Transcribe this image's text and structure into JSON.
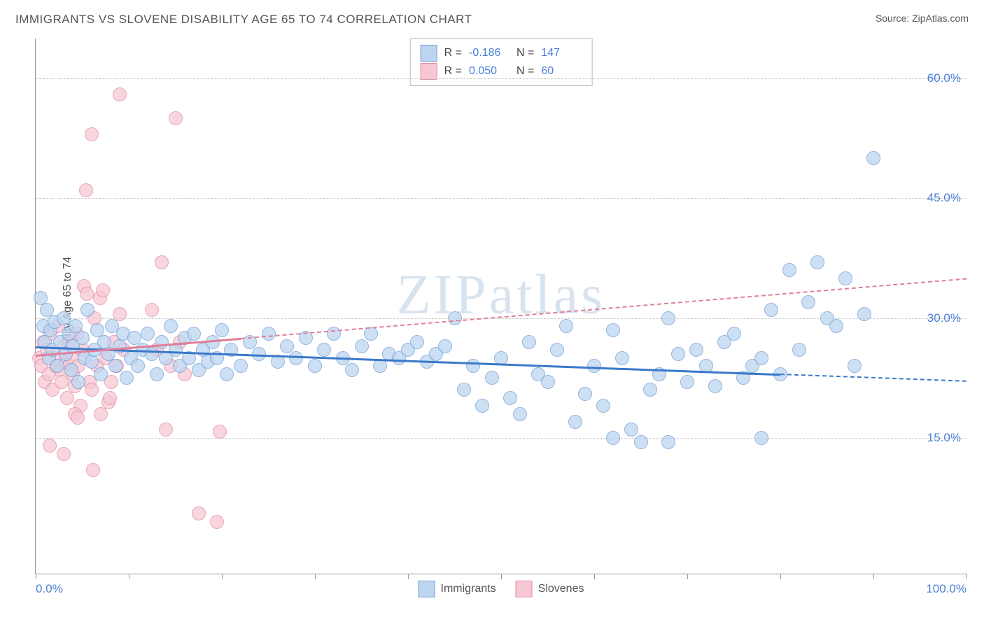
{
  "title": "IMMIGRANTS VS SLOVENE DISABILITY AGE 65 TO 74 CORRELATION CHART",
  "source_label": "Source: ",
  "source_name": "ZipAtlas.com",
  "ylabel": "Disability Age 65 to 74",
  "watermark": "ZIPatlas",
  "chart": {
    "type": "scatter",
    "xlim": [
      0,
      100
    ],
    "ylim": [
      -2,
      65
    ],
    "xticks": [
      0,
      10,
      20,
      30,
      40,
      50,
      60,
      70,
      80,
      90,
      100
    ],
    "xtick_labels": {
      "left": "0.0%",
      "right": "100.0%"
    },
    "yticks": [
      15,
      30,
      45,
      60
    ],
    "ytick_labels": [
      "15.0%",
      "30.0%",
      "45.0%",
      "60.0%"
    ],
    "grid_color": "#cccccc",
    "background_color": "#ffffff",
    "axis_color": "#999999",
    "marker_radius": 9,
    "marker_border_width": 1.5,
    "series": [
      {
        "name": "Immigrants",
        "legend_label": "Immigrants",
        "fill": "#bdd5f0",
        "stroke": "#6f9fd8",
        "R": "-0.186",
        "N": "147",
        "trend": {
          "x1": 0,
          "y1": 26.5,
          "x2": 100,
          "y2": 22.2,
          "solid_until_x": 80,
          "color": "#3a78c9"
        },
        "points": [
          [
            0.5,
            32.5
          ],
          [
            0.8,
            29
          ],
          [
            1,
            27
          ],
          [
            1.2,
            31
          ],
          [
            1.4,
            25
          ],
          [
            1.6,
            28.5
          ],
          [
            1.8,
            26
          ],
          [
            2,
            29.5
          ],
          [
            2.3,
            24
          ],
          [
            2.6,
            27
          ],
          [
            3,
            30
          ],
          [
            3.2,
            25.5
          ],
          [
            3.5,
            28
          ],
          [
            3.8,
            23.5
          ],
          [
            4,
            26.5
          ],
          [
            4.3,
            29
          ],
          [
            4.6,
            22
          ],
          [
            5,
            27.5
          ],
          [
            5.3,
            25
          ],
          [
            5.6,
            31
          ],
          [
            6,
            24.5
          ],
          [
            6.3,
            26
          ],
          [
            6.6,
            28.5
          ],
          [
            7,
            23
          ],
          [
            7.4,
            27
          ],
          [
            7.8,
            25.5
          ],
          [
            8.2,
            29
          ],
          [
            8.6,
            24
          ],
          [
            9,
            26.5
          ],
          [
            9.4,
            28
          ],
          [
            9.8,
            22.5
          ],
          [
            10.2,
            25
          ],
          [
            10.6,
            27.5
          ],
          [
            11,
            24
          ],
          [
            11.5,
            26
          ],
          [
            12,
            28
          ],
          [
            12.5,
            25.5
          ],
          [
            13,
            23
          ],
          [
            13.5,
            27
          ],
          [
            14,
            25
          ],
          [
            14.5,
            29
          ],
          [
            15,
            26
          ],
          [
            15.5,
            24
          ],
          [
            16,
            27.5
          ],
          [
            16.5,
            25
          ],
          [
            17,
            28
          ],
          [
            17.5,
            23.5
          ],
          [
            18,
            26
          ],
          [
            18.5,
            24.5
          ],
          [
            19,
            27
          ],
          [
            19.5,
            25
          ],
          [
            20,
            28.5
          ],
          [
            20.5,
            23
          ],
          [
            21,
            26
          ],
          [
            22,
            24
          ],
          [
            23,
            27
          ],
          [
            24,
            25.5
          ],
          [
            25,
            28
          ],
          [
            26,
            24.5
          ],
          [
            27,
            26.5
          ],
          [
            28,
            25
          ],
          [
            29,
            27.5
          ],
          [
            30,
            24
          ],
          [
            31,
            26
          ],
          [
            32,
            28
          ],
          [
            33,
            25
          ],
          [
            34,
            23.5
          ],
          [
            35,
            26.5
          ],
          [
            36,
            28
          ],
          [
            37,
            24
          ],
          [
            38,
            25.5
          ],
          [
            39,
            25
          ],
          [
            40,
            26
          ],
          [
            41,
            27
          ],
          [
            42,
            24.5
          ],
          [
            43,
            25.5
          ],
          [
            44,
            26.5
          ],
          [
            45,
            30
          ],
          [
            46,
            21
          ],
          [
            47,
            24
          ],
          [
            48,
            19
          ],
          [
            49,
            22.5
          ],
          [
            50,
            25
          ],
          [
            51,
            20
          ],
          [
            52,
            18
          ],
          [
            53,
            27
          ],
          [
            54,
            23
          ],
          [
            55,
            22
          ],
          [
            56,
            26
          ],
          [
            57,
            29
          ],
          [
            58,
            17
          ],
          [
            59,
            20.5
          ],
          [
            60,
            24
          ],
          [
            61,
            19
          ],
          [
            62,
            28.5
          ],
          [
            63,
            25
          ],
          [
            64,
            16
          ],
          [
            65,
            14.5
          ],
          [
            66,
            21
          ],
          [
            67,
            23
          ],
          [
            68,
            30
          ],
          [
            69,
            25.5
          ],
          [
            70,
            22
          ],
          [
            71,
            26
          ],
          [
            72,
            24
          ],
          [
            73,
            21.5
          ],
          [
            74,
            27
          ],
          [
            75,
            28
          ],
          [
            76,
            22.5
          ],
          [
            77,
            24
          ],
          [
            78,
            25
          ],
          [
            79,
            31
          ],
          [
            80,
            23
          ],
          [
            81,
            36
          ],
          [
            82,
            26
          ],
          [
            83,
            32
          ],
          [
            84,
            37
          ],
          [
            85,
            30
          ],
          [
            86,
            29
          ],
          [
            87,
            35
          ],
          [
            88,
            24
          ],
          [
            89,
            30.5
          ],
          [
            90,
            50
          ],
          [
            78,
            15
          ],
          [
            68,
            14.5
          ],
          [
            62,
            15
          ]
        ]
      },
      {
        "name": "Slovenes",
        "legend_label": "Slovenes",
        "fill": "#f7c8d3",
        "stroke": "#e18ba3",
        "R": "0.050",
        "N": "60",
        "trend": {
          "x1": 0,
          "y1": 25.4,
          "x2": 100,
          "y2": 35,
          "solid_until_x": 22,
          "color": "#e07f9a"
        },
        "points": [
          [
            0.4,
            25
          ],
          [
            0.6,
            24
          ],
          [
            0.8,
            27
          ],
          [
            1,
            22
          ],
          [
            1.2,
            26
          ],
          [
            1.4,
            23
          ],
          [
            1.6,
            28
          ],
          [
            1.8,
            21
          ],
          [
            2,
            25
          ],
          [
            2.2,
            24
          ],
          [
            2.4,
            29
          ],
          [
            2.6,
            23.5
          ],
          [
            2.8,
            22
          ],
          [
            3,
            26.5
          ],
          [
            3.2,
            24.5
          ],
          [
            3.4,
            20
          ],
          [
            3.6,
            27
          ],
          [
            3.8,
            25
          ],
          [
            4,
            23
          ],
          [
            4.2,
            21.5
          ],
          [
            4.4,
            28
          ],
          [
            4.6,
            24
          ],
          [
            4.8,
            19
          ],
          [
            5,
            26
          ],
          [
            5.2,
            34
          ],
          [
            5.5,
            33
          ],
          [
            5.8,
            22
          ],
          [
            6,
            21
          ],
          [
            6.3,
            30
          ],
          [
            6.6,
            24
          ],
          [
            6.9,
            32.5
          ],
          [
            7.2,
            33.5
          ],
          [
            7.5,
            25
          ],
          [
            7.8,
            19.5
          ],
          [
            8.1,
            22
          ],
          [
            8.4,
            27
          ],
          [
            8.7,
            24
          ],
          [
            9,
            30.5
          ],
          [
            9.5,
            26
          ],
          [
            5.4,
            46
          ],
          [
            6,
            53
          ],
          [
            6.2,
            11
          ],
          [
            9,
            58
          ],
          [
            12.5,
            31
          ],
          [
            13,
            26
          ],
          [
            13.5,
            37
          ],
          [
            14,
            16
          ],
          [
            14.5,
            24
          ],
          [
            15,
            55
          ],
          [
            15.5,
            27
          ],
          [
            16,
            23
          ],
          [
            7,
            18
          ],
          [
            8,
            20
          ],
          [
            4.2,
            18
          ],
          [
            4.5,
            17.5
          ],
          [
            3,
            13
          ],
          [
            19.5,
            4.5
          ],
          [
            17.5,
            5.5
          ],
          [
            19.8,
            15.8
          ],
          [
            1.5,
            14
          ]
        ]
      }
    ],
    "stats_box": {
      "r_label": "R =",
      "n_label": "N ="
    }
  }
}
